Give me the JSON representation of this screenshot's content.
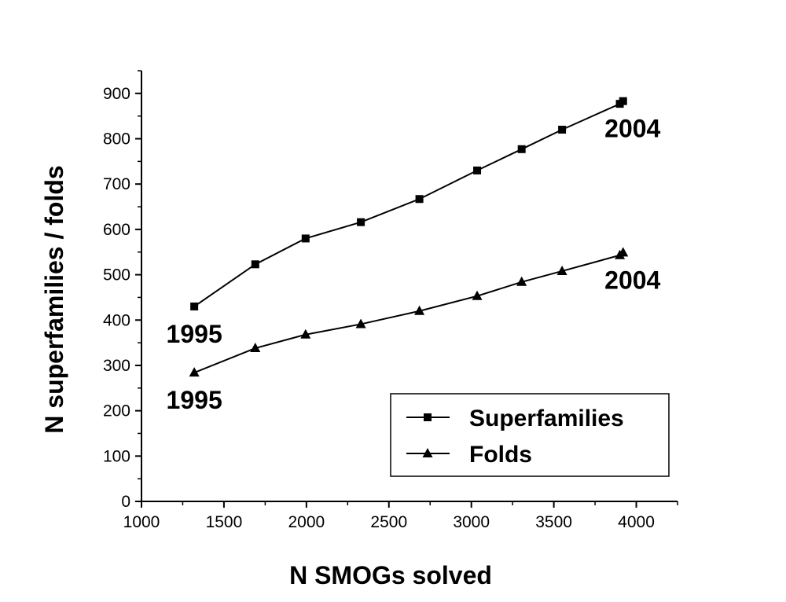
{
  "chart_data": {
    "type": "line",
    "xlabel": "N SMOGs solved",
    "ylabel": "N superfamilies / folds",
    "xlim": [
      1000,
      4250
    ],
    "ylim": [
      0,
      950
    ],
    "x_ticks": [
      1000,
      1500,
      2000,
      2500,
      3000,
      3500,
      4000
    ],
    "y_ticks": [
      0,
      100,
      200,
      300,
      400,
      500,
      600,
      700,
      800,
      900
    ],
    "grid": false,
    "legend_position": "bottom-right",
    "series": [
      {
        "name": "Superfamilies",
        "marker": "square",
        "x": [
          1320,
          1690,
          1995,
          2330,
          2685,
          3035,
          3305,
          3550,
          3900,
          3920
        ],
        "y": [
          430,
          523,
          580,
          616,
          667,
          730,
          777,
          820,
          877,
          883
        ]
      },
      {
        "name": "Folds",
        "marker": "triangle",
        "x": [
          1320,
          1690,
          1995,
          2330,
          2685,
          3035,
          3305,
          3550,
          3900,
          3920
        ],
        "y": [
          284,
          338,
          368,
          391,
          420,
          453,
          484,
          508,
          543,
          549
        ]
      }
    ],
    "annotations": [
      {
        "text": "1995",
        "x": 1320,
        "y": 430,
        "series": "Superfamilies",
        "placement": "below"
      },
      {
        "text": "1995",
        "x": 1320,
        "y": 284,
        "series": "Folds",
        "placement": "below"
      },
      {
        "text": "2004",
        "x": 3920,
        "y": 883,
        "series": "Superfamilies",
        "placement": "below"
      },
      {
        "text": "2004",
        "x": 3920,
        "y": 549,
        "series": "Folds",
        "placement": "below"
      }
    ]
  }
}
